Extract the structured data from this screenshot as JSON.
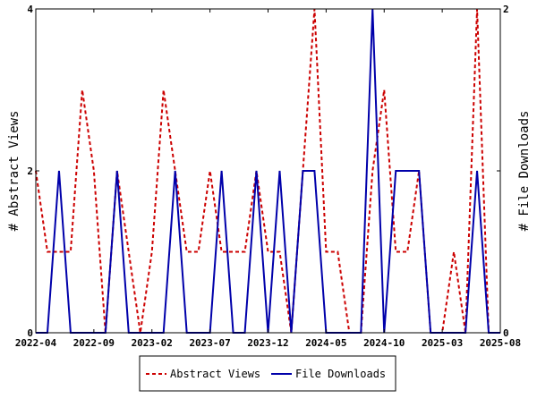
{
  "chart_data": {
    "type": "line",
    "title": "",
    "ylabel_left": "# Abstract Views",
    "ylabel_right": "# File Downloads",
    "ylim_left": [
      0,
      4
    ],
    "ylim_right": [
      0,
      2
    ],
    "y_ticks_left": [
      "0",
      "2",
      "4"
    ],
    "y_ticks_right": [
      "0",
      "1",
      "2"
    ],
    "x_range": [
      "2022-04",
      "2025-08"
    ],
    "x_ticks": [
      "2022-04",
      "2022-09",
      "2023-02",
      "2023-07",
      "2023-12",
      "2024-05",
      "2024-10",
      "2025-03",
      "2025-08"
    ],
    "grid": false,
    "legend_position": "bottom",
    "series": [
      {
        "name": "Abstract Views",
        "axis": "left",
        "color": "#cc0000",
        "style": "dashed",
        "points": [
          [
            "2022-04",
            2
          ],
          [
            "2022-05",
            1
          ],
          [
            "2022-06",
            1
          ],
          [
            "2022-07",
            1
          ],
          [
            "2022-08",
            3
          ],
          [
            "2022-09",
            2
          ],
          [
            "2022-10",
            0
          ],
          [
            "2022-11",
            2
          ],
          [
            "2022-12",
            1
          ],
          [
            "2023-01",
            0
          ],
          [
            "2023-02",
            1
          ],
          [
            "2023-03",
            3
          ],
          [
            "2023-04",
            2
          ],
          [
            "2023-05",
            1
          ],
          [
            "2023-06",
            1
          ],
          [
            "2023-07",
            2
          ],
          [
            "2023-08",
            1
          ],
          [
            "2023-09",
            1
          ],
          [
            "2023-10",
            1
          ],
          [
            "2023-11",
            2
          ],
          [
            "2023-12",
            1
          ],
          [
            "2024-01",
            1
          ],
          [
            "2024-02",
            0
          ],
          [
            "2024-03",
            2
          ],
          [
            "2024-04",
            4
          ],
          [
            "2024-05",
            1
          ],
          [
            "2024-06",
            1
          ],
          [
            "2024-07",
            0
          ],
          [
            "2024-08",
            0
          ],
          [
            "2024-09",
            2
          ],
          [
            "2024-10",
            3
          ],
          [
            "2024-11",
            1
          ],
          [
            "2024-12",
            1
          ],
          [
            "2025-01",
            2
          ],
          [
            "2025-02",
            0
          ],
          [
            "2025-03",
            0
          ],
          [
            "2025-04",
            1
          ],
          [
            "2025-05",
            0
          ],
          [
            "2025-06",
            4
          ],
          [
            "2025-07",
            0
          ],
          [
            "2025-08",
            0
          ]
        ]
      },
      {
        "name": "File Downloads",
        "axis": "right",
        "color": "#0000aa",
        "style": "solid",
        "points": [
          [
            "2022-04",
            0
          ],
          [
            "2022-05",
            0
          ],
          [
            "2022-06",
            1
          ],
          [
            "2022-07",
            0
          ],
          [
            "2022-08",
            0
          ],
          [
            "2022-09",
            0
          ],
          [
            "2022-10",
            0
          ],
          [
            "2022-11",
            1
          ],
          [
            "2022-12",
            0
          ],
          [
            "2023-01",
            0
          ],
          [
            "2023-02",
            0
          ],
          [
            "2023-03",
            0
          ],
          [
            "2023-04",
            1
          ],
          [
            "2023-05",
            0
          ],
          [
            "2023-06",
            0
          ],
          [
            "2023-07",
            0
          ],
          [
            "2023-08",
            1
          ],
          [
            "2023-09",
            0
          ],
          [
            "2023-10",
            0
          ],
          [
            "2023-11",
            1
          ],
          [
            "2023-12",
            0
          ],
          [
            "2024-01",
            1
          ],
          [
            "2024-02",
            0
          ],
          [
            "2024-03",
            1
          ],
          [
            "2024-04",
            1
          ],
          [
            "2024-05",
            0
          ],
          [
            "2024-06",
            0
          ],
          [
            "2024-07",
            0
          ],
          [
            "2024-08",
            0
          ],
          [
            "2024-09",
            2
          ],
          [
            "2024-10",
            0
          ],
          [
            "2024-11",
            1
          ],
          [
            "2024-12",
            1
          ],
          [
            "2025-01",
            1
          ],
          [
            "2025-02",
            0
          ],
          [
            "2025-03",
            0
          ],
          [
            "2025-04",
            0
          ],
          [
            "2025-05",
            0
          ],
          [
            "2025-06",
            1
          ],
          [
            "2025-07",
            0
          ],
          [
            "2025-08",
            0
          ]
        ]
      }
    ]
  }
}
